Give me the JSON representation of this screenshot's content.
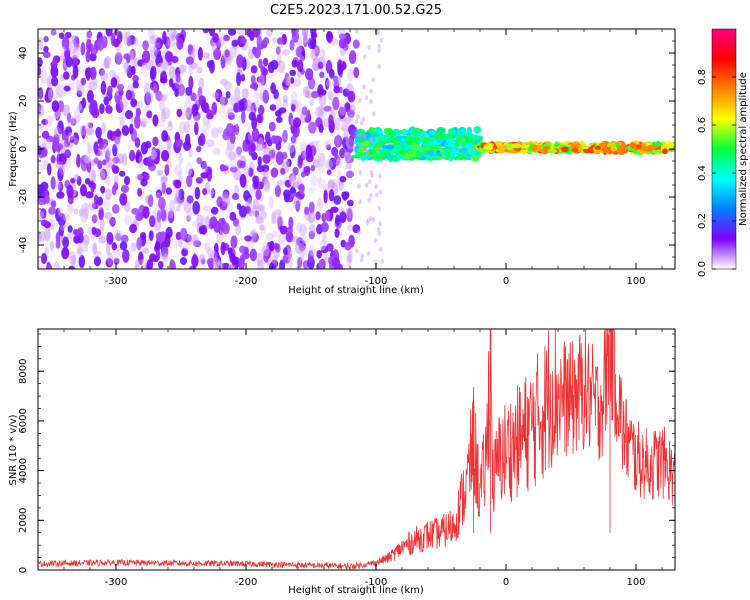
{
  "figure": {
    "title": "C2E5.2023.171.00.52.G25"
  },
  "chart_data": [
    {
      "type": "heatmap",
      "title": "C2E5.2023.171.00.52.G25",
      "xlabel": "Height of straight line (km)",
      "ylabel": "Frequency (Hz)",
      "xlim": [
        -360,
        130
      ],
      "ylim": [
        -50,
        50
      ],
      "xticks": [
        -300,
        -200,
        -100,
        0,
        100
      ],
      "yticks": [
        -40,
        -20,
        0,
        20,
        40
      ],
      "colorbar": {
        "label": "Normalized spectral amplitude",
        "range": [
          0,
          1
        ],
        "ticks": [
          0.0,
          0.2,
          0.4,
          0.6,
          0.8
        ],
        "colors": [
          "#ffffff",
          "#7e00ff",
          "#0080ff",
          "#00ffff",
          "#00ff3a",
          "#ffff00",
          "#ff8000",
          "#ff0000",
          "#ff0080"
        ]
      },
      "regions": [
        {
          "x_range": [
            -360,
            -115
          ],
          "freq_range": [
            -50,
            50
          ],
          "amplitude_range": [
            0.0,
            0.15
          ],
          "description": "broadband noise"
        },
        {
          "x_range": [
            -115,
            -20
          ],
          "freq_range": [
            -4,
            8
          ],
          "amplitude_range": [
            0.3,
            0.55
          ]
        },
        {
          "x_range": [
            -20,
            130
          ],
          "freq_range": [
            -1,
            2
          ],
          "amplitude_range": [
            0.5,
            0.85
          ]
        }
      ]
    },
    {
      "type": "line",
      "xlabel": "Height of straight line (km)",
      "ylabel": "SNR (10 * v/v)",
      "xlim": [
        -360,
        130
      ],
      "ylim": [
        0,
        9700
      ],
      "xticks": [
        -300,
        -200,
        -100,
        0,
        100
      ],
      "yticks": [
        0,
        2000,
        4000,
        6000,
        8000
      ],
      "color": "#ee3333",
      "x": [
        -360,
        -300,
        -200,
        -120,
        -110,
        -100,
        -90,
        -80,
        -70,
        -60,
        -50,
        -40,
        -30,
        -25,
        -20,
        -15,
        -12,
        -10,
        -5,
        0,
        10,
        20,
        30,
        35,
        40,
        50,
        60,
        70,
        75,
        80,
        90,
        100,
        110,
        120,
        130
      ],
      "y": [
        250,
        300,
        250,
        150,
        200,
        300,
        500,
        900,
        1200,
        1400,
        1500,
        1800,
        3500,
        5200,
        3000,
        4500,
        9300,
        3500,
        4500,
        4800,
        5200,
        5800,
        6500,
        7400,
        7100,
        6800,
        7300,
        6500,
        7000,
        9600,
        5500,
        4500,
        4200,
        4400,
        3800
      ]
    }
  ]
}
